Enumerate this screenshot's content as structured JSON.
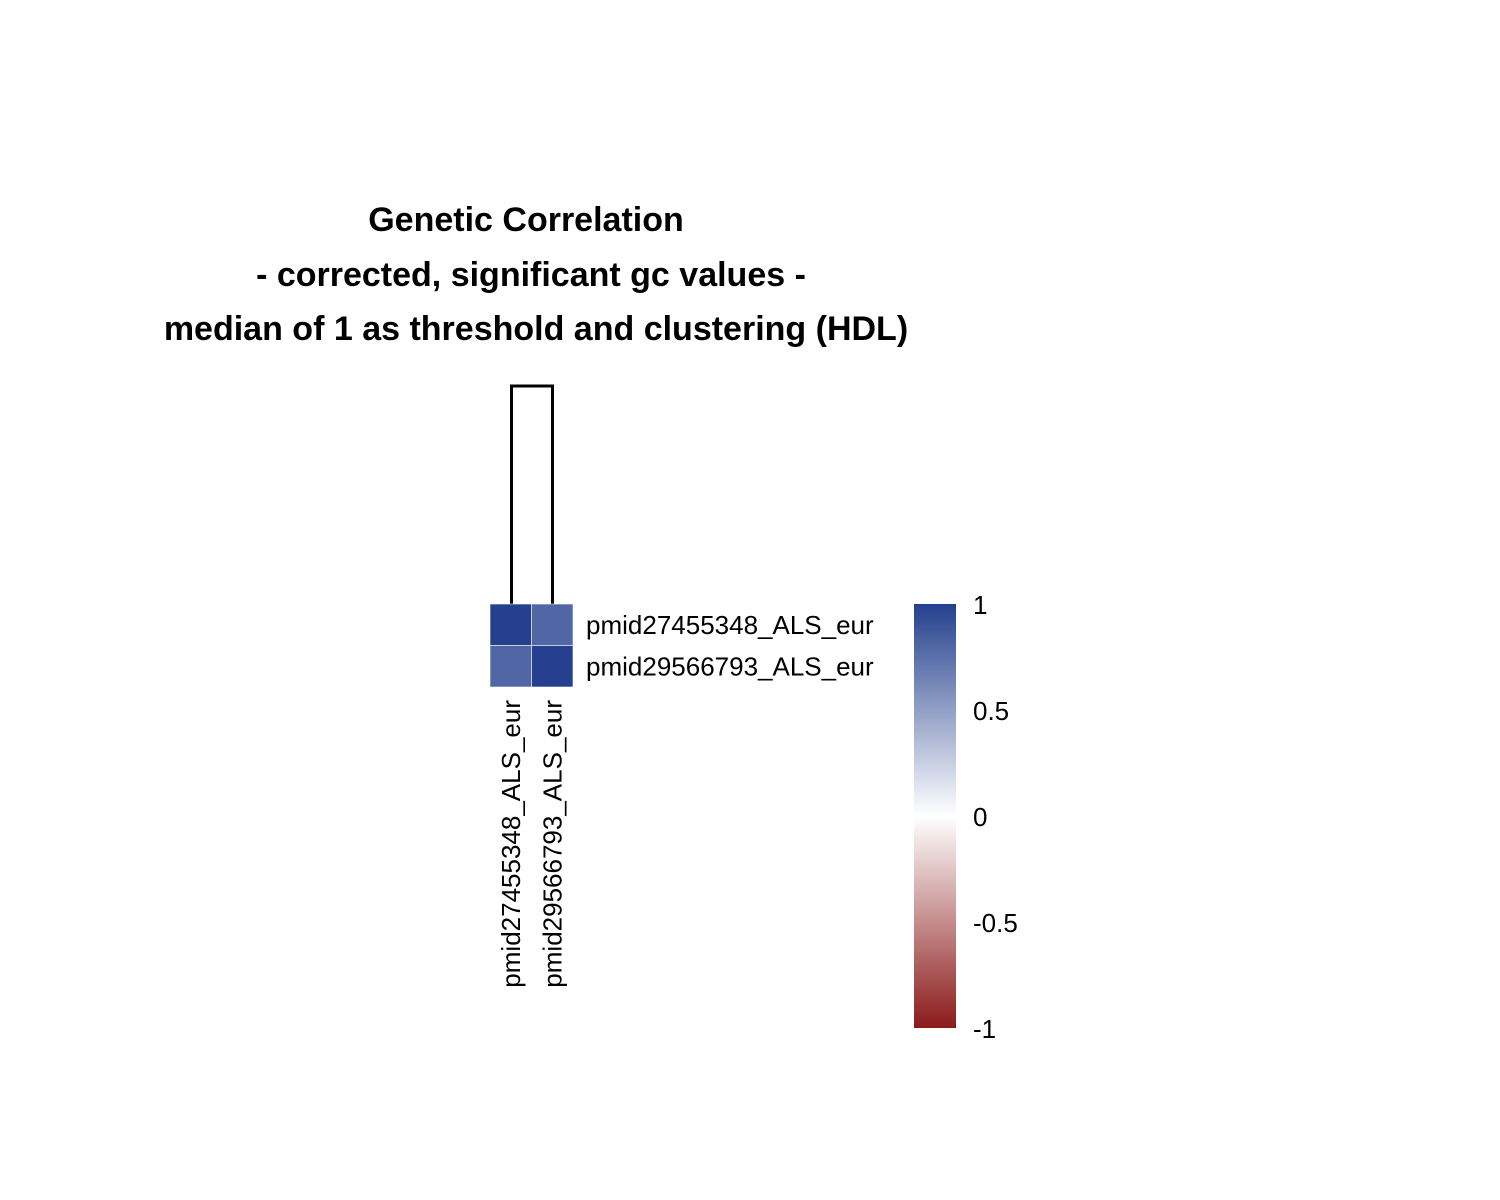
{
  "chart_data": {
    "type": "heatmap",
    "title": [
      "Genetic Correlation",
      "- corrected, significant gc values -",
      "median of 1 as threshold and clustering (HDL)"
    ],
    "rows": [
      "pmid27455348_ALS_eur",
      "pmid29566793_ALS_eur"
    ],
    "columns": [
      "pmid27455348_ALS_eur",
      "pmid29566793_ALS_eur"
    ],
    "values": [
      [
        1.0,
        0.8
      ],
      [
        0.8,
        1.0
      ]
    ],
    "dendrogram": "columns",
    "legend": {
      "placement": "right",
      "min": -1,
      "max": 1,
      "ticks": [
        "1",
        "0.5",
        "0",
        "-0.5",
        "-1"
      ],
      "tick_values": [
        1,
        0.5,
        0,
        -0.5,
        -1
      ],
      "colors": {
        "high": "#24408E",
        "mid": "#FFFFFF",
        "low": "#8B1A1A"
      }
    }
  }
}
